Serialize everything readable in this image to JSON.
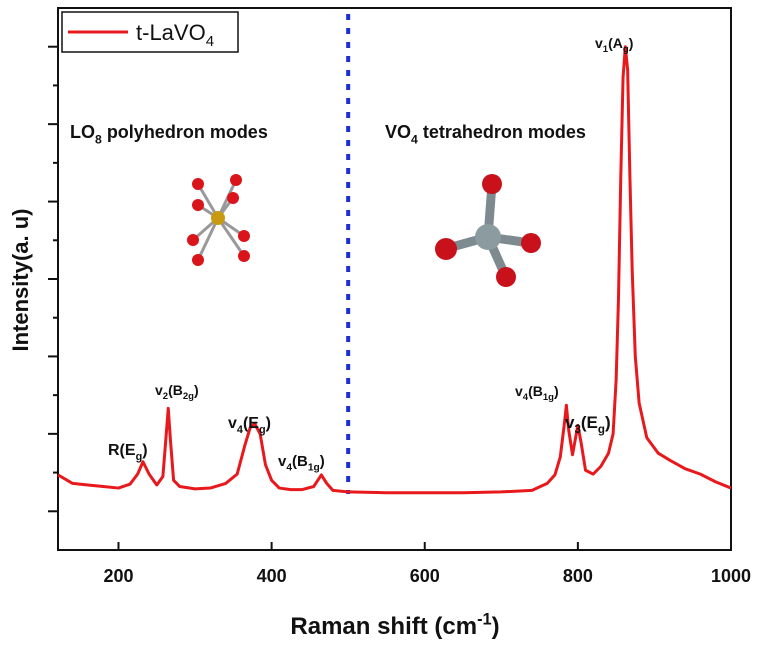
{
  "chart_data": {
    "type": "line",
    "x_label": {
      "parts": [
        "Raman shift (cm",
        "-1",
        ")"
      ],
      "script": "sup"
    },
    "y_label": "Intensity(a. u)",
    "xlim": [
      121,
      1000
    ],
    "ylim": [
      0,
      7
    ],
    "xticks": [
      200,
      400,
      600,
      800,
      1000
    ],
    "yticks": [
      0.5,
      1.5,
      2.5,
      3.5,
      4.5,
      5.5,
      6.5
    ],
    "yminor_ticks": [
      1,
      2,
      3,
      4,
      5,
      6
    ],
    "show_ytick_labels": false,
    "legend": "top-left",
    "x": [
      121,
      140,
      160,
      180,
      200,
      215,
      225,
      232,
      240,
      250,
      258,
      262,
      265,
      268,
      272,
      280,
      300,
      320,
      340,
      355,
      365,
      372,
      378,
      385,
      392,
      400,
      410,
      425,
      440,
      455,
      465,
      472,
      480,
      500,
      550,
      600,
      650,
      700,
      740,
      760,
      770,
      777,
      782,
      785,
      788,
      793,
      797,
      800,
      804,
      810,
      820,
      830,
      840,
      846,
      850,
      853,
      856,
      859,
      862,
      865,
      868,
      871,
      875,
      880,
      890,
      905,
      920,
      940,
      960,
      980,
      1000
    ],
    "series": [
      {
        "name": "t-LaVO4",
        "color": "#e8191c",
        "values": [
          0.97,
          0.86,
          0.84,
          0.82,
          0.8,
          0.85,
          0.98,
          1.14,
          0.98,
          0.84,
          0.95,
          1.45,
          1.83,
          1.4,
          0.9,
          0.82,
          0.79,
          0.8,
          0.86,
          0.98,
          1.35,
          1.58,
          1.63,
          1.5,
          1.1,
          0.9,
          0.8,
          0.78,
          0.78,
          0.82,
          0.97,
          0.86,
          0.77,
          0.75,
          0.74,
          0.74,
          0.74,
          0.75,
          0.77,
          0.86,
          0.97,
          1.2,
          1.6,
          1.87,
          1.55,
          1.23,
          1.45,
          1.61,
          1.4,
          1.03,
          0.98,
          1.08,
          1.25,
          1.5,
          2.2,
          3.23,
          4.8,
          6.1,
          6.5,
          6.2,
          4.8,
          3.6,
          2.5,
          1.9,
          1.45,
          1.25,
          1.16,
          1.05,
          0.98,
          0.88,
          0.8
        ]
      }
    ],
    "divider": {
      "x": 500,
      "color": "#1a2fd6"
    },
    "annotations": [
      {
        "parts": [
          "LO",
          "8",
          " polyhedron modes"
        ]
      },
      {
        "parts": [
          "VO",
          "4",
          " tetrahedron modes"
        ]
      },
      {
        "parts": [
          "R(E",
          "g",
          ")"
        ]
      },
      {
        "parts": [
          "v",
          "2",
          "(B",
          "2g",
          ")"
        ]
      },
      {
        "parts": [
          "v",
          "4",
          "(E",
          "g",
          ")"
        ]
      },
      {
        "parts": [
          "v",
          "4",
          "(B",
          "1g",
          ")"
        ]
      },
      {
        "parts": [
          "v",
          "4",
          "(B",
          "1g",
          ")"
        ]
      },
      {
        "parts": [
          "v",
          "3",
          "(E",
          "g",
          ")"
        ]
      },
      {
        "parts": [
          "v",
          "1",
          "(A",
          "g",
          ")"
        ]
      }
    ]
  }
}
